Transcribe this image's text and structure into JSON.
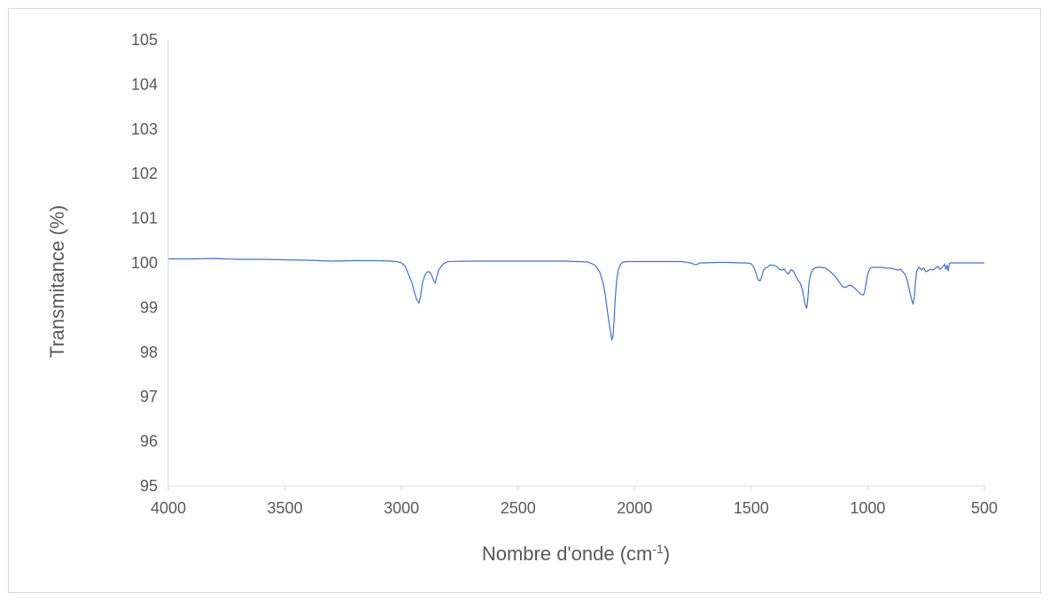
{
  "chart_data": {
    "type": "line",
    "title": "",
    "xlabel": "Nombre d'onde (cm",
    "xlabel_sup": "-1",
    "xlabel_close": ")",
    "ylabel": "Transmitance (%)",
    "xlim": [
      4000,
      500
    ],
    "ylim": [
      95,
      105
    ],
    "x_ticks": [
      "4000",
      "3500",
      "3000",
      "2500",
      "2000",
      "1500",
      "1000",
      "500"
    ],
    "y_ticks": [
      "95",
      "96",
      "97",
      "98",
      "99",
      "100",
      "101",
      "102",
      "103",
      "104",
      "105"
    ],
    "grid": false,
    "legend": "none",
    "series": [
      {
        "color": "#4472c4",
        "x": [
          4000,
          3900,
          3800,
          3700,
          3600,
          3500,
          3400,
          3300,
          3200,
          3100,
          3050,
          3020,
          3000,
          2985,
          2970,
          2955,
          2945,
          2935,
          2925,
          2918,
          2910,
          2900,
          2890,
          2880,
          2870,
          2862,
          2855,
          2848,
          2840,
          2820,
          2800,
          2700,
          2600,
          2500,
          2400,
          2300,
          2250,
          2200,
          2170,
          2150,
          2135,
          2125,
          2115,
          2105,
          2098,
          2093,
          2088,
          2083,
          2077,
          2070,
          2060,
          2050,
          2030,
          2000,
          1900,
          1800,
          1760,
          1740,
          1730,
          1720,
          1700,
          1650,
          1600,
          1550,
          1520,
          1500,
          1490,
          1480,
          1470,
          1462,
          1455,
          1448,
          1440,
          1430,
          1420,
          1410,
          1400,
          1390,
          1380,
          1370,
          1360,
          1350,
          1340,
          1330,
          1320,
          1310,
          1300,
          1290,
          1280,
          1270,
          1262,
          1257,
          1252,
          1245,
          1235,
          1220,
          1200,
          1180,
          1160,
          1140,
          1120,
          1110,
          1100,
          1090,
          1080,
          1070,
          1060,
          1050,
          1040,
          1030,
          1020,
          1015,
          1010,
          1000,
          990,
          980,
          960,
          940,
          920,
          900,
          880,
          870,
          860,
          850,
          840,
          830,
          820,
          812,
          806,
          800,
          795,
          790,
          780,
          770,
          760,
          750,
          740,
          730,
          720,
          710,
          700,
          690,
          680,
          670,
          665,
          660,
          655,
          650,
          645,
          640,
          635,
          630,
          600,
          550,
          500
        ],
        "y": [
          100.09,
          100.09,
          100.1,
          100.08,
          100.08,
          100.07,
          100.06,
          100.04,
          100.05,
          100.05,
          100.04,
          100.03,
          100.0,
          99.93,
          99.75,
          99.55,
          99.35,
          99.18,
          99.1,
          99.25,
          99.55,
          99.72,
          99.8,
          99.8,
          99.72,
          99.6,
          99.55,
          99.7,
          99.85,
          99.98,
          100.03,
          100.04,
          100.04,
          100.04,
          100.04,
          100.04,
          100.03,
          100.02,
          99.95,
          99.8,
          99.55,
          99.25,
          98.85,
          98.5,
          98.28,
          98.35,
          98.7,
          99.2,
          99.6,
          99.85,
          99.97,
          100.02,
          100.03,
          100.03,
          100.03,
          100.03,
          100.0,
          99.96,
          99.97,
          100.0,
          100.0,
          100.01,
          100.01,
          100.0,
          100.0,
          99.98,
          99.92,
          99.78,
          99.62,
          99.6,
          99.68,
          99.82,
          99.88,
          99.9,
          99.95,
          99.95,
          99.94,
          99.92,
          99.86,
          99.84,
          99.87,
          99.8,
          99.75,
          99.85,
          99.82,
          99.72,
          99.62,
          99.55,
          99.4,
          99.1,
          98.98,
          99.2,
          99.55,
          99.75,
          99.86,
          99.9,
          99.9,
          99.88,
          99.8,
          99.7,
          99.55,
          99.48,
          99.45,
          99.46,
          99.5,
          99.49,
          99.45,
          99.4,
          99.35,
          99.3,
          99.28,
          99.32,
          99.45,
          99.75,
          99.88,
          99.9,
          99.9,
          99.9,
          99.88,
          99.88,
          99.85,
          99.84,
          99.86,
          99.8,
          99.75,
          99.6,
          99.35,
          99.18,
          99.07,
          99.25,
          99.6,
          99.82,
          99.9,
          99.85,
          99.88,
          99.8,
          99.83,
          99.86,
          99.84,
          99.88,
          99.92,
          99.86,
          99.9,
          99.97,
          99.85,
          99.95,
          99.82,
          99.98,
          100.0,
          100.0,
          100.0,
          100.0,
          100.0,
          100.0,
          100.0
        ]
      }
    ]
  }
}
